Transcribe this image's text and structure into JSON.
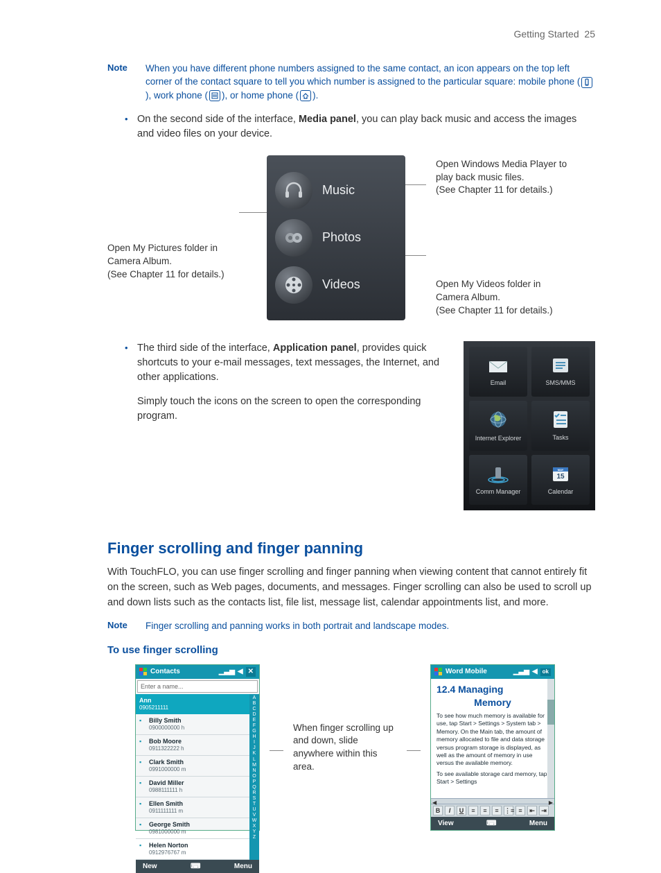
{
  "page": {
    "section": "Getting Started",
    "number": 25
  },
  "note1": {
    "label": "Note",
    "text_a": "When you have different phone numbers assigned to the same contact, an icon appears on the top left corner of the contact square to tell you which number is assigned to the particular square: mobile phone (",
    "text_b": "), work phone (",
    "text_c": "), or home phone (",
    "text_d": ")."
  },
  "bullet_media": {
    "pre": "On the second side of the interface, ",
    "bold": "Media panel",
    "post": ", you can play back music and access the images and video files on your device."
  },
  "media": {
    "items": [
      {
        "label": "Music"
      },
      {
        "label": "Photos"
      },
      {
        "label": "Videos"
      }
    ],
    "callout_music": "Open Windows Media Player to play back music files.\n(See Chapter 11 for details.)",
    "callout_photos": "Open My Pictures folder in Camera Album.\n(See Chapter 11 for details.)",
    "callout_videos": "Open My Videos folder in Camera Album.\n(See Chapter 11 for details.)"
  },
  "bullet_app": {
    "pre": "The third side of the interface, ",
    "bold": "Application panel",
    "post": ", provides quick shortcuts to your e-mail messages, text messages, the Internet, and other applications."
  },
  "app_para": "Simply touch the icons on the screen to open the corresponding program.",
  "apps": [
    {
      "label": "Email"
    },
    {
      "label": "SMS/MMS"
    },
    {
      "label": "Internet Explorer"
    },
    {
      "label": "Tasks"
    },
    {
      "label": "Comm Manager"
    },
    {
      "label": "Calendar"
    }
  ],
  "h2": "Finger scrolling and finger panning",
  "intro": "With TouchFLO, you can use finger scrolling and finger panning when viewing content that cannot entirely fit on the screen, such as Web pages, documents, and messages. Finger scrolling can also be used to scroll up and down lists such as the contacts list, file list, message list, calendar appointments list, and more.",
  "note2": {
    "label": "Note",
    "text": "Finger scrolling and panning works in both portrait and landscape modes."
  },
  "h3": "To use finger scrolling",
  "scroll_callout": "When finger scrolling up and down, slide anywhere within this area.",
  "contacts": {
    "title": "Contacts",
    "placeholder": "Enter a name...",
    "selected": {
      "name": "Ann",
      "sub": "0905211111"
    },
    "rows": [
      {
        "name": "Billy Smith",
        "sub": "0900000000   h"
      },
      {
        "name": "Bob Moore",
        "sub": "0911322222   h"
      },
      {
        "name": "Clark Smith",
        "sub": "0991000000   m"
      },
      {
        "name": "David Miller",
        "sub": "0988111111   h"
      },
      {
        "name": "Ellen Smith",
        "sub": "0911111111   m"
      },
      {
        "name": "George Smith",
        "sub": "0981000000   m"
      },
      {
        "name": "Helen Norton",
        "sub": "0912976767   m"
      }
    ],
    "soft_left": "New",
    "soft_right": "Menu",
    "alpha": "A B C D E F G H I J K L M N O P Q R S T U V W X Y Z"
  },
  "word": {
    "title": "Word Mobile",
    "h1": "12.4  Managing",
    "h1b": "Memory",
    "p1": "To see how much memory is available for use, tap Start > Settings > System tab > Memory. On the Main tab, the amount of memory allocated to file and data storage versus program storage is displayed, as well as the amount of memory in use versus the available memory.",
    "p2": "To see available storage card memory, tap Start > Settings",
    "soft_left": "View",
    "soft_right": "Menu"
  },
  "colors": {
    "brand_blue": "#0a4f9e",
    "teal": "#1496b0",
    "panel_dark": "#2b2f35"
  }
}
